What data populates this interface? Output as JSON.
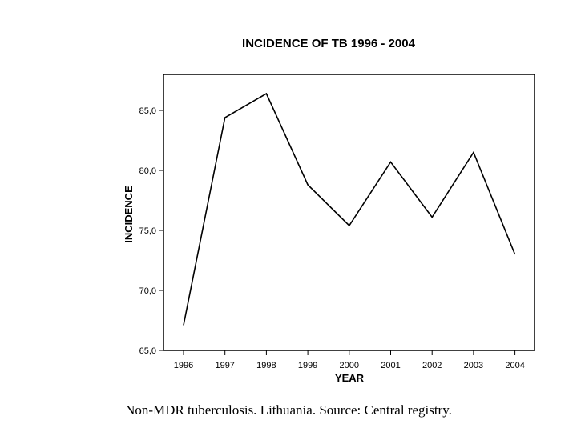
{
  "chart_data": {
    "type": "line",
    "title": "INCIDENCE OF TB 1996 - 2004",
    "xlabel": "YEAR",
    "ylabel": "INCIDENCE",
    "categories": [
      "1996",
      "1997",
      "1998",
      "1999",
      "2000",
      "2001",
      "2002",
      "2003",
      "2004"
    ],
    "series": [
      {
        "values": [
          67.1,
          84.4,
          86.4,
          78.8,
          75.4,
          80.7,
          76.1,
          81.5,
          73.0
        ]
      }
    ],
    "ylim": [
      65,
      88
    ],
    "yticks": [
      65,
      70,
      75,
      80,
      85
    ],
    "ytick_labels": [
      "65,0",
      "70,0",
      "75,0",
      "80,0",
      "85,0"
    ],
    "grid": false,
    "line_color": "#000000"
  },
  "caption": "Non-MDR tuberculosis. Lithuania. Source: Central registry."
}
